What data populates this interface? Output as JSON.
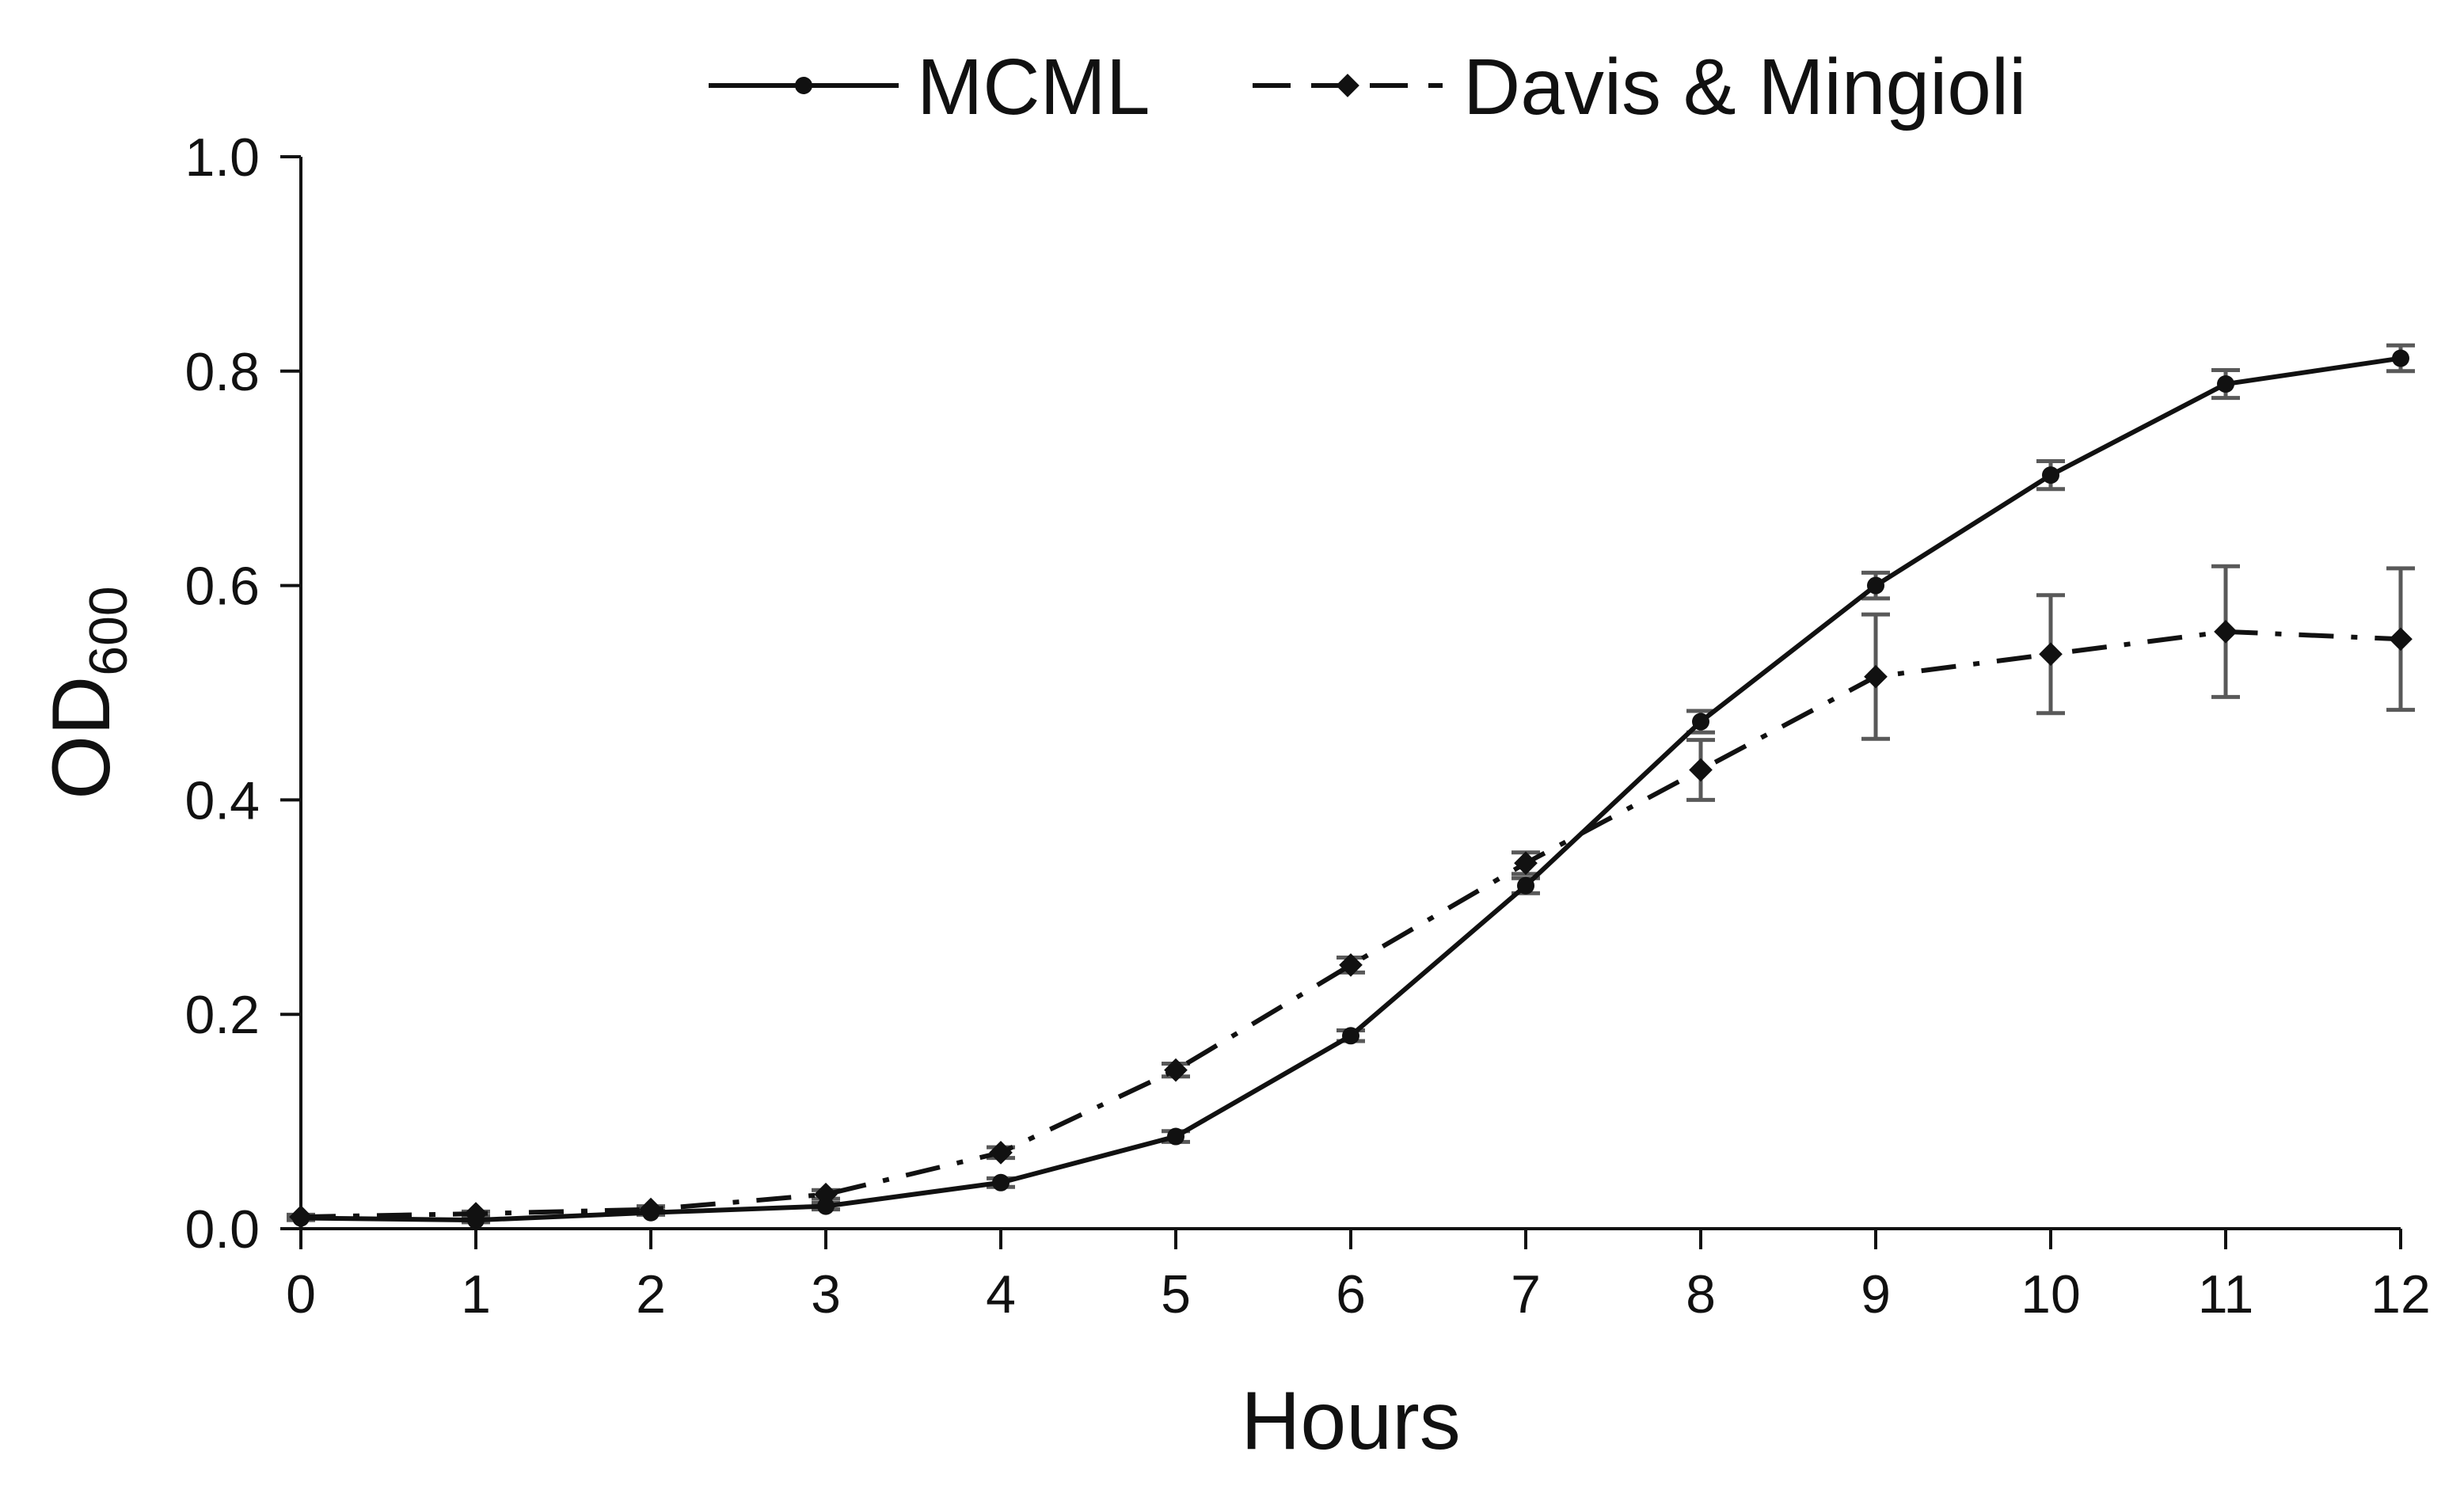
{
  "chart_data": {
    "type": "line",
    "title": "",
    "xlabel": "Hours",
    "ylabel": {
      "main": "OD",
      "subscript": "600"
    },
    "xlim": [
      0,
      12
    ],
    "ylim": [
      0,
      1.0
    ],
    "x": [
      0,
      1,
      2,
      3,
      4,
      5,
      6,
      7,
      8,
      9,
      10,
      11,
      12
    ],
    "x_tick_labels": [
      "0",
      "1",
      "2",
      "3",
      "4",
      "5",
      "6",
      "7",
      "8",
      "9",
      "10",
      "11",
      "12"
    ],
    "y_ticks": [
      0.0,
      0.2,
      0.4,
      0.6,
      0.8,
      1.0
    ],
    "y_tick_labels": [
      "0.0",
      "0.2",
      "0.4",
      "0.6",
      "0.8",
      "1.0"
    ],
    "grid": false,
    "legend_position": "top",
    "series": [
      {
        "name": "MCML",
        "marker": "circle",
        "line_style": "solid",
        "color": "#111111",
        "values": [
          0.01,
          0.008,
          0.015,
          0.021,
          0.043,
          0.086,
          0.18,
          0.32,
          0.473,
          0.6,
          0.703,
          0.788,
          0.812
        ],
        "error": [
          0.002,
          0.002,
          0.002,
          0.003,
          0.004,
          0.005,
          0.005,
          0.007,
          0.01,
          0.012,
          0.013,
          0.013,
          0.012
        ]
      },
      {
        "name": "Davis & Mingioli",
        "marker": "diamond",
        "line_style": "dash-dot",
        "color": "#111111",
        "values": [
          0.011,
          0.014,
          0.018,
          0.032,
          0.071,
          0.148,
          0.246,
          0.341,
          0.428,
          0.515,
          0.536,
          0.557,
          0.55
        ],
        "error": [
          0.002,
          0.002,
          0.003,
          0.004,
          0.005,
          0.006,
          0.007,
          0.01,
          0.028,
          0.058,
          0.055,
          0.061,
          0.066
        ]
      }
    ],
    "error_bar_color": "#595959"
  }
}
